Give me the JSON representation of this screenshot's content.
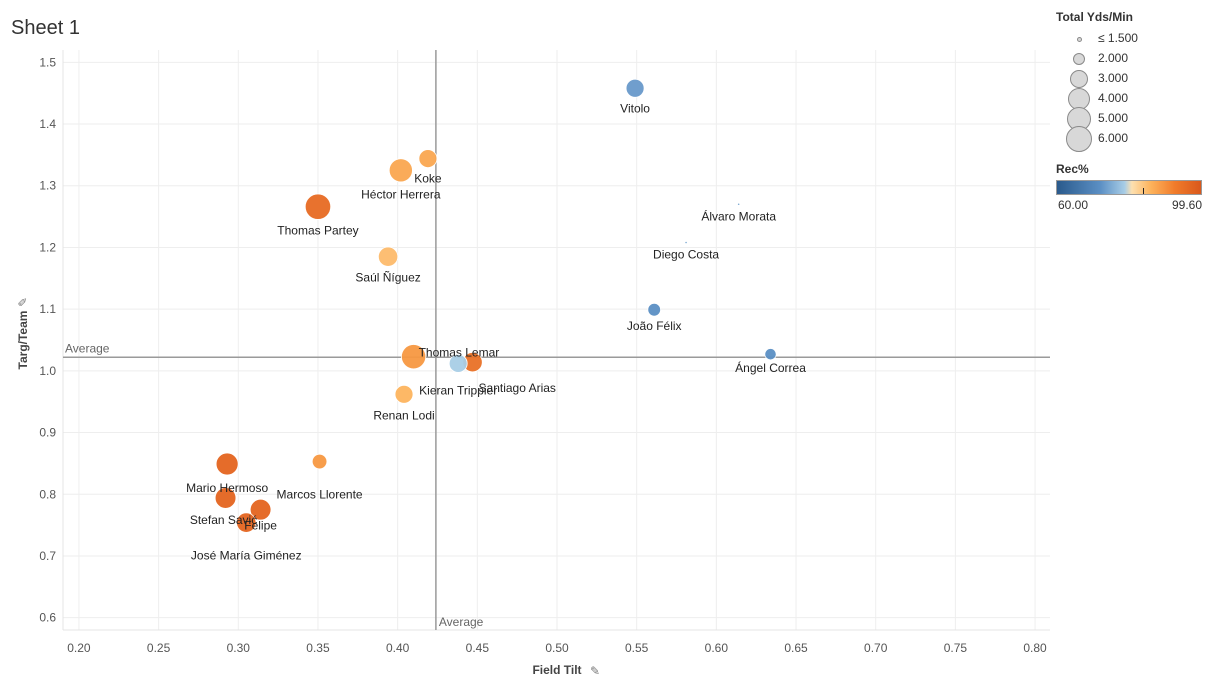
{
  "sheet_title": "Sheet 1",
  "colors": {
    "low": "#4e79b0",
    "mid": "#a9cfe0",
    "high": "#e8601c",
    "ref_line": "#999999",
    "grid": "#eeeeee"
  },
  "legend": {
    "size_title": "Total Yds/Min",
    "size_items": [
      "≤ 1.500",
      "2.000",
      "3.000",
      "4.000",
      "5.000",
      "6.000"
    ],
    "color_title": "Rec%",
    "color_min": "60.00",
    "color_max": "99.60"
  },
  "chart_data": {
    "type": "scatter",
    "xlabel": "Field Tilt",
    "ylabel": "Targ/Team",
    "xlim": [
      0.19,
      0.81
    ],
    "ylim": [
      0.58,
      1.52
    ],
    "x_ticks": [
      "0.20",
      "0.25",
      "0.30",
      "0.35",
      "0.40",
      "0.45",
      "0.50",
      "0.55",
      "0.60",
      "0.65",
      "0.70",
      "0.75",
      "0.80"
    ],
    "y_ticks": [
      "0.6",
      "0.7",
      "0.8",
      "0.9",
      "1.0",
      "1.1",
      "1.2",
      "1.3",
      "1.4",
      "1.5"
    ],
    "grid": true,
    "reference_lines": {
      "x_average": 0.424,
      "y_average": 1.022,
      "label": "Average"
    },
    "points": [
      {
        "name": "Vitolo",
        "x": 0.549,
        "y": 1.458,
        "size": 3.0,
        "rec": 68
      },
      {
        "name": "Koke",
        "x": 0.419,
        "y": 1.344,
        "size": 3.0,
        "rec": 88
      },
      {
        "name": "Héctor Herrera",
        "x": 0.402,
        "y": 1.325,
        "size": 5.0,
        "rec": 88
      },
      {
        "name": "Thomas Partey",
        "x": 0.35,
        "y": 1.266,
        "size": 6.0,
        "rec": 97
      },
      {
        "name": "Álvaro Morata",
        "x": 0.614,
        "y": 1.27,
        "size": 1.0,
        "rec": 70
      },
      {
        "name": "Diego Costa",
        "x": 0.581,
        "y": 1.208,
        "size": 1.0,
        "rec": 70
      },
      {
        "name": "Saúl Ñíguez",
        "x": 0.394,
        "y": 1.185,
        "size": 3.5,
        "rec": 85
      },
      {
        "name": "João Félix",
        "x": 0.561,
        "y": 1.099,
        "size": 1.5,
        "rec": 66
      },
      {
        "name": "Ángel Correa",
        "x": 0.634,
        "y": 1.027,
        "size": 1.2,
        "rec": 66
      },
      {
        "name": "Thomas Lemar",
        "x": 0.41,
        "y": 1.023,
        "size": 5.5,
        "rec": 90
      },
      {
        "name": "Kieran Trippier",
        "x": 0.438,
        "y": 1.012,
        "size": 3.0,
        "rec": 78
      },
      {
        "name": "Santiago Arias",
        "x": 0.447,
        "y": 1.014,
        "size": 3.5,
        "rec": 96
      },
      {
        "name": "Renan Lodi",
        "x": 0.404,
        "y": 0.962,
        "size": 3.0,
        "rec": 86
      },
      {
        "name": "Marcos Llorente",
        "x": 0.351,
        "y": 0.853,
        "size": 2.0,
        "rec": 90
      },
      {
        "name": "Mario Hermoso",
        "x": 0.293,
        "y": 0.849,
        "size": 4.5,
        "rec": 98
      },
      {
        "name": "Stefan Savić",
        "x": 0.292,
        "y": 0.794,
        "size": 4.0,
        "rec": 98
      },
      {
        "name": "Felipe",
        "x": 0.314,
        "y": 0.775,
        "size": 4.0,
        "rec": 98
      },
      {
        "name": "José María Giménez",
        "x": 0.305,
        "y": 0.754,
        "size": 3.5,
        "rec": 98
      }
    ]
  }
}
